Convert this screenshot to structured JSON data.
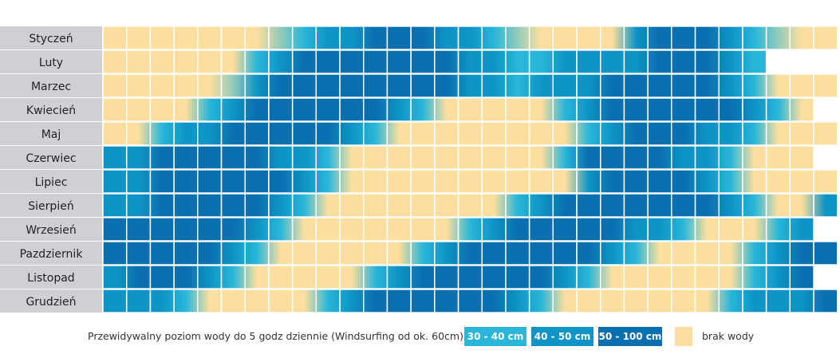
{
  "chart_data": {
    "type": "heatmap",
    "rows": [
      "Styczeń",
      "Luty",
      "Marzec",
      "Kwiecień",
      "Maj",
      "Czerwiec",
      "Lipiec",
      "Sierpień",
      "Wrzesień",
      "Pazdziernik",
      "Listopad",
      "Grudzień"
    ],
    "columns": 31,
    "days_in_month": [
      31,
      28,
      31,
      30,
      31,
      30,
      31,
      31,
      30,
      31,
      30,
      31
    ],
    "level_scale": [
      "brak wody",
      "30 - 40 cm",
      "40 - 50 cm",
      "50 - 100 cm"
    ],
    "values": [
      [
        0,
        0,
        0,
        0,
        0,
        0,
        0,
        0.5,
        1,
        2,
        2,
        3,
        3,
        3,
        2,
        2,
        1,
        0.5,
        0,
        0,
        0,
        0,
        2,
        3,
        3,
        3,
        2,
        1,
        0.5,
        0,
        0
      ],
      [
        0,
        0,
        0,
        0,
        0,
        0,
        1,
        2,
        3,
        3,
        3,
        3,
        3,
        3,
        3,
        2,
        2,
        1,
        1,
        2,
        2,
        2,
        2,
        3,
        3,
        3,
        2,
        1
      ],
      [
        0,
        0,
        0,
        0,
        0,
        0.5,
        2,
        3,
        3,
        3,
        3,
        3,
        3,
        3,
        3,
        2,
        2,
        1,
        2,
        2,
        2,
        3,
        3,
        3,
        3,
        3,
        2,
        1,
        0,
        0,
        0
      ],
      [
        0,
        0,
        0,
        0,
        1,
        2,
        3,
        3,
        3,
        3,
        3,
        3,
        2,
        1,
        0,
        0,
        0,
        0,
        0,
        1,
        2,
        3,
        3,
        3,
        3,
        3,
        3,
        2,
        1,
        0
      ],
      [
        0,
        0,
        1,
        2,
        2,
        3,
        3,
        3,
        3,
        3,
        2,
        1,
        0,
        0,
        0,
        0,
        0,
        0,
        0,
        0,
        1,
        2,
        3,
        3,
        3,
        2,
        2,
        1,
        0,
        0,
        0
      ],
      [
        2,
        2,
        3,
        3,
        3,
        3,
        3,
        2,
        2,
        1,
        0,
        0,
        0,
        0,
        0,
        0,
        0,
        0,
        0,
        1,
        3,
        3,
        3,
        3,
        2,
        2,
        1,
        0,
        0,
        0
      ],
      [
        2,
        2,
        3,
        3,
        3,
        3,
        3,
        3,
        2,
        1,
        0,
        0,
        0,
        0,
        0,
        0,
        0,
        0,
        0,
        0,
        2,
        3,
        3,
        3,
        3,
        2,
        1,
        0,
        0,
        0,
        0
      ],
      [
        2,
        2,
        3,
        3,
        3,
        3,
        3,
        2,
        1,
        0,
        0,
        0,
        0,
        0,
        0,
        0,
        0,
        1,
        2,
        3,
        3,
        3,
        3,
        3,
        3,
        3,
        2,
        1,
        0,
        0,
        2
      ],
      [
        3,
        3,
        3,
        3,
        3,
        3,
        2,
        1,
        0,
        0,
        0,
        0,
        0,
        0,
        0,
        1,
        2,
        3,
        3,
        3,
        3,
        3,
        2,
        2,
        1,
        0,
        0,
        0,
        1,
        2
      ],
      [
        3,
        3,
        3,
        3,
        3,
        2,
        1,
        0,
        0,
        0,
        0,
        0,
        0,
        1,
        2,
        3,
        3,
        3,
        3,
        3,
        3,
        2,
        1,
        0,
        0,
        0,
        0,
        1,
        2,
        3,
        3
      ],
      [
        2,
        3,
        3,
        3,
        2,
        1,
        0,
        0,
        0,
        0,
        0,
        1,
        2,
        3,
        3,
        3,
        3,
        3,
        3,
        2,
        1,
        0,
        0,
        0,
        0,
        0,
        0,
        1,
        2,
        3
      ],
      [
        2,
        2,
        2,
        1,
        0,
        0,
        0,
        0,
        0,
        1,
        2,
        3,
        3,
        3,
        3,
        3,
        3,
        2,
        1,
        0,
        0,
        0,
        0,
        0,
        0,
        0,
        1,
        2,
        2,
        2,
        3
      ]
    ],
    "legend": {
      "caption": "Przewidywalny poziom wody do 5 godz dziennie (Windsurfing od ok. 60cm)",
      "items": [
        {
          "label": "30 - 40 cm",
          "color": "#29b6d8"
        },
        {
          "label": "40 - 50 cm",
          "color": "#0e94c6"
        },
        {
          "label": "50 - 100 cm",
          "color": "#0a6fae"
        },
        {
          "label": "brak wody",
          "color": "#fcdf9e"
        }
      ]
    },
    "colors": {
      "label_bg": "#cfd0d6",
      "grid_line": "#ffffff",
      "level_0": "#fcdf9e",
      "level_1": "#29b6d8",
      "level_2": "#0e94c6",
      "level_3": "#0a6fae"
    }
  }
}
